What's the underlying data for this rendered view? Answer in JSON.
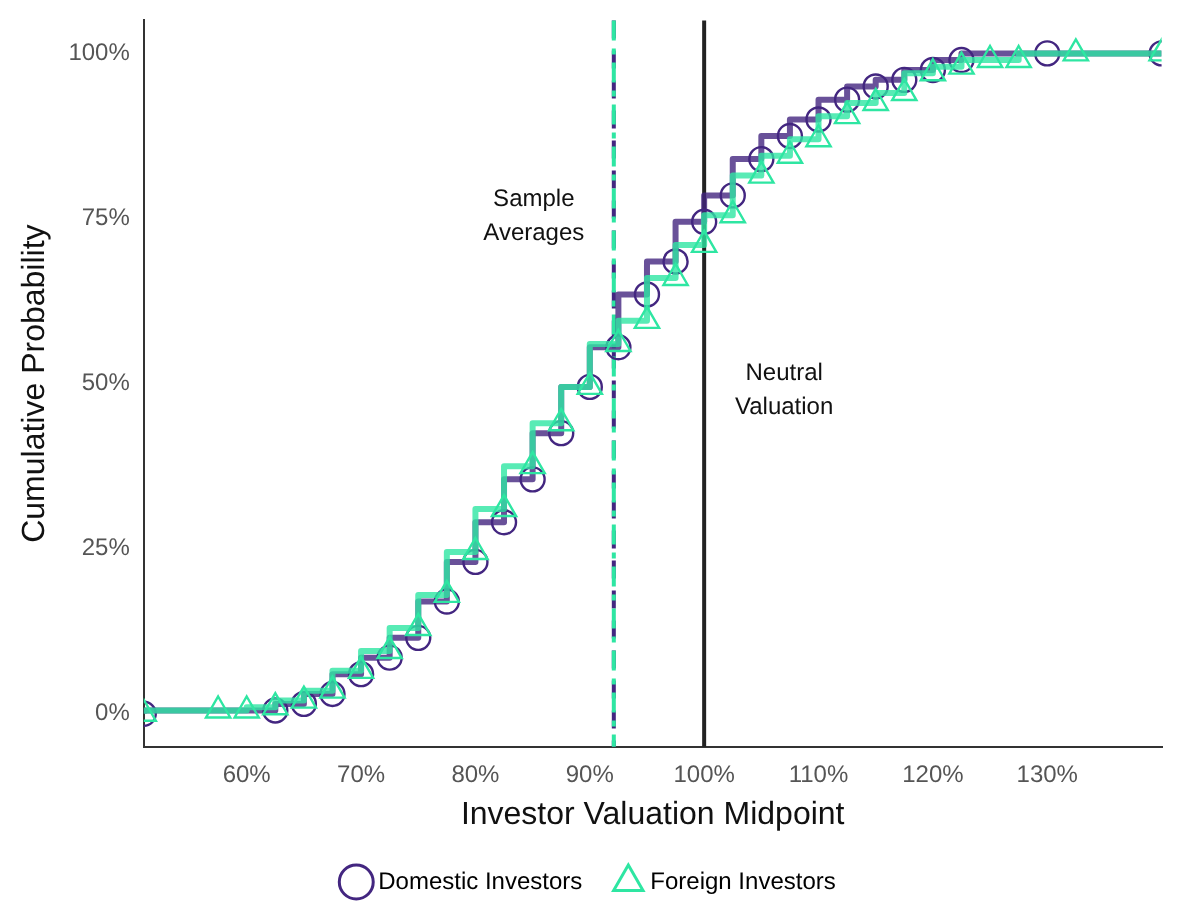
{
  "chart_data": {
    "type": "step",
    "xlabel": "Investor Valuation Midpoint",
    "ylabel": "Cumulative Probability",
    "xlim": [
      51,
      140
    ],
    "ylim": [
      -5,
      105
    ],
    "xticks": [
      {
        "value": 60,
        "label": "60%"
      },
      {
        "value": 70,
        "label": "70%"
      },
      {
        "value": 80,
        "label": "80%"
      },
      {
        "value": 90,
        "label": "90%"
      },
      {
        "value": 100,
        "label": "100%"
      },
      {
        "value": 110,
        "label": "110%"
      },
      {
        "value": 120,
        "label": "120%"
      },
      {
        "value": 130,
        "label": "130%"
      }
    ],
    "yticks": [
      {
        "value": 0,
        "label": "0%"
      },
      {
        "value": 25,
        "label": "25%"
      },
      {
        "value": 50,
        "label": "50%"
      },
      {
        "value": 75,
        "label": "75%"
      },
      {
        "value": 100,
        "label": "100%"
      }
    ],
    "series": [
      {
        "name": "Foreign Investors",
        "color": "#2ee6a2",
        "marker": "triangle",
        "x": [
          51,
          57.5,
          60,
          62.5,
          65,
          67.5,
          70,
          72.5,
          75,
          77.5,
          80,
          82.5,
          85,
          87.5,
          90,
          92.5,
          95,
          97.5,
          100,
          102.5,
          105,
          107.5,
          110,
          112.5,
          115,
          117.5,
          120,
          122.5,
          125,
          127.5,
          132.5,
          140
        ],
        "values": [
          0,
          0.5,
          0.5,
          1,
          2,
          3.5,
          6.5,
          9.5,
          13,
          18,
          24.5,
          31,
          37.5,
          44,
          49.5,
          56,
          59.5,
          66,
          71,
          75.5,
          81.5,
          84.5,
          87,
          90.5,
          92.5,
          94,
          97,
          98,
          99,
          99,
          100,
          100
        ]
      },
      {
        "name": "Domestic Investors",
        "color": "#432680",
        "marker": "circle",
        "x": [
          51,
          62.5,
          65,
          67.5,
          70,
          72.5,
          75,
          77.5,
          80,
          82.5,
          85,
          87.5,
          90,
          92.5,
          95,
          97.5,
          100,
          102.5,
          105,
          107.5,
          110,
          112.5,
          115,
          117.5,
          120,
          122.5,
          130,
          140
        ],
        "values": [
          0,
          0.5,
          1.5,
          3,
          6,
          8.5,
          11.5,
          17,
          23,
          29,
          35.5,
          42.5,
          49.5,
          55.5,
          63.5,
          68.5,
          74.5,
          78.5,
          84,
          87.5,
          90,
          93,
          95,
          96,
          97.5,
          99,
          100,
          100
        ]
      }
    ],
    "ref_lines": [
      {
        "axis": "x",
        "value": 92.1,
        "color": "#432680",
        "line_style": "dashed",
        "label": "Sample\nAverages"
      },
      {
        "axis": "x",
        "value": 92.1,
        "color": "#2ee6a2",
        "line_style": "dashdot"
      },
      {
        "axis": "x",
        "value": 100,
        "color": "#222222",
        "line_style": "solid",
        "label": "Neutral\nValuation"
      }
    ],
    "grid": false,
    "legend": "bottom",
    "line_style": "solid"
  }
}
